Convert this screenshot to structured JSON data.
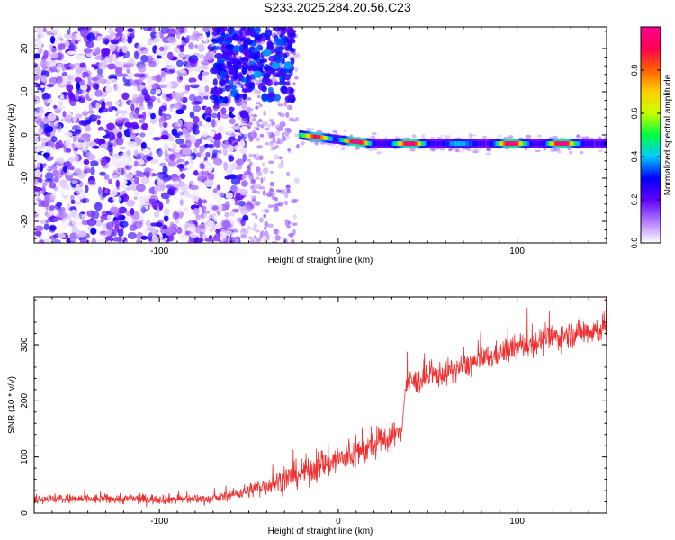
{
  "page": {
    "title": "S233.2025.284.20.56.C23"
  },
  "chart_data": [
    {
      "type": "heatmap",
      "title": "S233.2025.284.20.56.C23",
      "xlabel": "Height of straight line (km)",
      "ylabel": "Frequency (Hz)",
      "xlim": [
        -170,
        150
      ],
      "ylim": [
        -25,
        25
      ],
      "x_ticks": [
        -100,
        0,
        100
      ],
      "y_ticks": [
        20,
        10,
        0,
        -10,
        -20
      ],
      "colorbar": {
        "label": "Normalized spectral amplitude",
        "range": [
          0,
          1
        ],
        "ticks": [
          "0.0",
          "0.2",
          "0.4",
          "0.6",
          "0.8"
        ],
        "tick_values": [
          0.0,
          0.2,
          0.4,
          0.6,
          0.8
        ],
        "colors": [
          "#ffffff",
          "#b07aff",
          "#6000ff",
          "#0000ff",
          "#00c8ff",
          "#00ff40",
          "#c8ff00",
          "#ffd000",
          "#ff6000",
          "#ff0050",
          "#ff0090"
        ]
      },
      "features": {
        "noise_region_x": [
          -170,
          -50
        ],
        "burst_region": {
          "x": [
            -70,
            -25
          ],
          "y": [
            8,
            25
          ]
        },
        "carrier": {
          "x_start": -22,
          "x_end": 150,
          "freq_start": 0,
          "freq_end": -2,
          "hot_spots": [
            -12,
            10,
            40,
            96,
            124
          ]
        }
      }
    },
    {
      "type": "line",
      "xlabel": "Height of straight line (km)",
      "ylabel": "SNR (10 * v/v)",
      "xlim": [
        -170,
        150
      ],
      "ylim": [
        0,
        385
      ],
      "x_ticks": [
        -100,
        0,
        100
      ],
      "y_ticks": [
        0,
        100,
        200,
        300
      ],
      "color": "#f03030",
      "trend": [
        {
          "x": -170,
          "y": 25
        },
        {
          "x": -70,
          "y": 25
        },
        {
          "x": -50,
          "y": 40
        },
        {
          "x": -30,
          "y": 60
        },
        {
          "x": -10,
          "y": 85
        },
        {
          "x": 10,
          "y": 105
        },
        {
          "x": 35,
          "y": 145
        },
        {
          "x": 38,
          "y": 230
        },
        {
          "x": 60,
          "y": 250
        },
        {
          "x": 100,
          "y": 295
        },
        {
          "x": 130,
          "y": 320
        },
        {
          "x": 150,
          "y": 330
        }
      ],
      "noise_amplitude": [
        {
          "x": -170,
          "a": 12
        },
        {
          "x": -60,
          "a": 12
        },
        {
          "x": -30,
          "a": 30
        },
        {
          "x": 0,
          "a": 40
        },
        {
          "x": 35,
          "a": 30
        },
        {
          "x": 40,
          "a": 30
        },
        {
          "x": 100,
          "a": 30
        },
        {
          "x": 150,
          "a": 35
        }
      ]
    }
  ]
}
